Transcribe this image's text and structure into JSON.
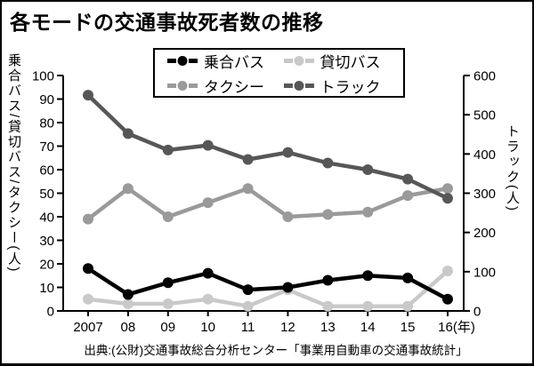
{
  "title": "各モードの交通事故死者数の推移",
  "source": "出典:(公財)交通事故総合分析センター「事業用自動車の交通事故統計」",
  "chart_data": {
    "type": "line",
    "x_categories": [
      "2007",
      "08",
      "09",
      "10",
      "11",
      "12",
      "13",
      "14",
      "15",
      "16(年)"
    ],
    "left_axis": {
      "label": "乗合バス/貸切バス/タクシー(人)",
      "min": 0,
      "max": 100,
      "step": 10
    },
    "right_axis": {
      "label": "トラック(人)",
      "min": 0,
      "max": 600,
      "step": 100
    },
    "grid": false,
    "legend_position": "top-center",
    "series": [
      {
        "name": "乗合バス",
        "axis": "left",
        "color": "#000000",
        "values": [
          18,
          7,
          12,
          16,
          9,
          10,
          13,
          15,
          14,
          5
        ]
      },
      {
        "name": "貸切バス",
        "axis": "left",
        "color": "#c9c9c9",
        "values": [
          5,
          3,
          3,
          5,
          2,
          9,
          2,
          2,
          2,
          17
        ]
      },
      {
        "name": "タクシー",
        "axis": "left",
        "color": "#9a9a9a",
        "values": [
          39,
          52,
          40,
          46,
          52,
          40,
          41,
          42,
          49,
          52
        ]
      },
      {
        "name": "トラック",
        "axis": "right",
        "color": "#575757",
        "values": [
          550,
          452,
          410,
          422,
          386,
          404,
          377,
          360,
          336,
          287
        ]
      }
    ]
  }
}
